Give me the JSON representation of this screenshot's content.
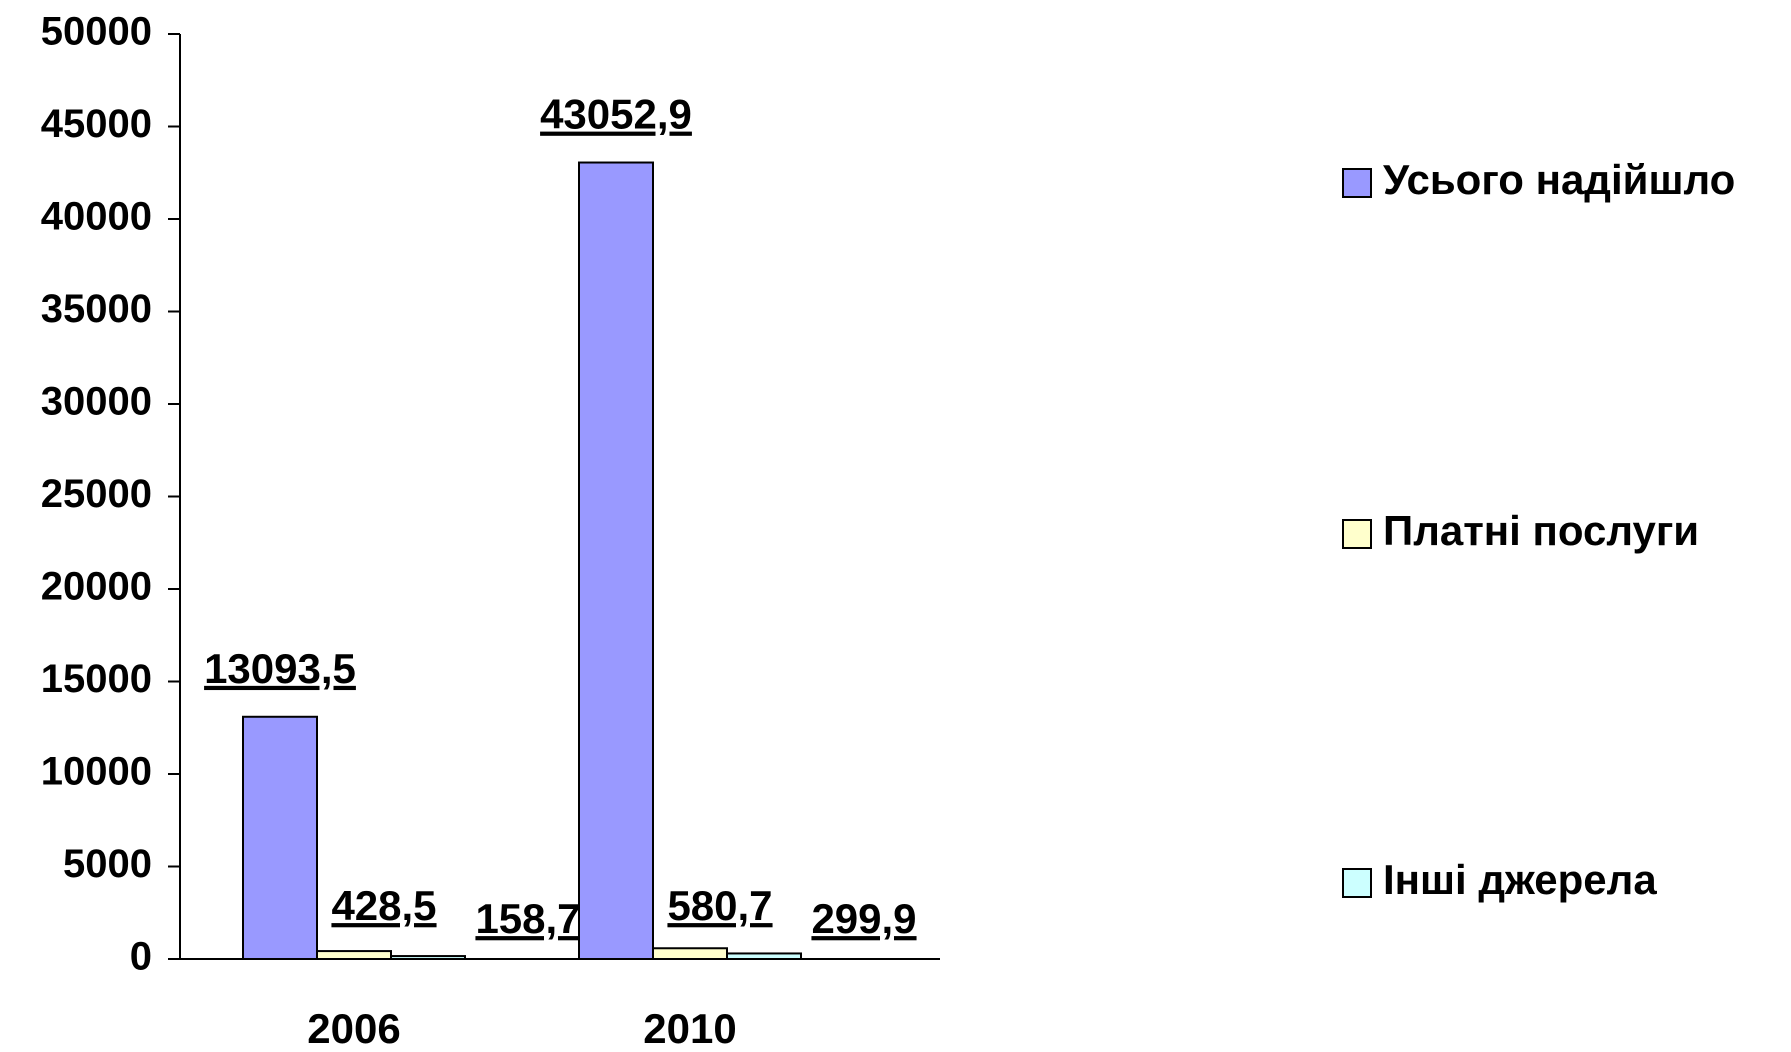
{
  "chart_data": {
    "type": "bar",
    "categories": [
      "2006",
      "2010"
    ],
    "series": [
      {
        "name": "Усього надійшло",
        "color": "#9999ff",
        "values": [
          13093.5,
          43052.9
        ],
        "value_labels": [
          "13093,5",
          "43052,9"
        ]
      },
      {
        "name": "Платні послуги",
        "color": "#ffffcc",
        "values": [
          428.5,
          580.7
        ],
        "value_labels": [
          "428,5",
          "580,7"
        ]
      },
      {
        "name": "Інші джерела",
        "color": "#ccffff",
        "values": [
          158.7,
          299.9
        ],
        "value_labels": [
          "158,7",
          "299,9"
        ]
      }
    ],
    "ylim": [
      0,
      50000
    ],
    "yticks": [
      0,
      5000,
      10000,
      15000,
      20000,
      25000,
      30000,
      35000,
      40000,
      45000,
      50000
    ],
    "legend": "right"
  }
}
